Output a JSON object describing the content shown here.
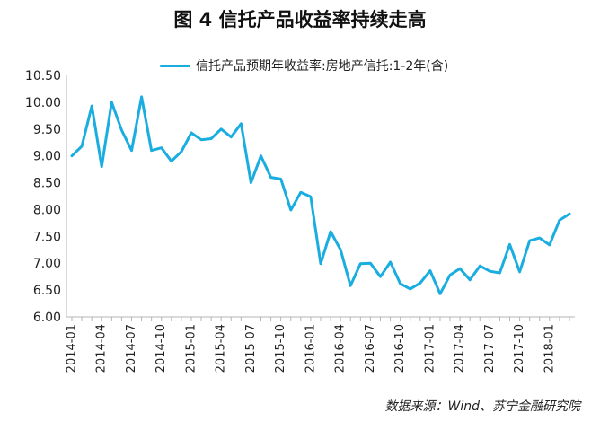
{
  "title": "图 4  信托产品收益率持续走高",
  "source": "数据来源：Wind、苏宁金融研究院",
  "chart_data": {
    "type": "line",
    "ylim": [
      6.0,
      10.5
    ],
    "yticks": [
      "6.00",
      "6.50",
      "7.00",
      "7.50",
      "8.00",
      "8.50",
      "9.00",
      "9.50",
      "10.00",
      "10.50"
    ],
    "xtick_labels": [
      "2014-01",
      "2014-04",
      "2014-07",
      "2014-10",
      "2015-01",
      "2015-04",
      "2015-07",
      "2015-10",
      "2016-01",
      "2016-04",
      "2016-07",
      "2016-10",
      "2017-01",
      "2017-04",
      "2017-07",
      "2017-10",
      "2018-01"
    ],
    "color": "#1AADE0",
    "series": [
      {
        "name": "信托产品预期年收益率:房地产信托:1-2年(含)",
        "values": [
          9.0,
          9.18,
          9.93,
          8.8,
          10.0,
          9.48,
          9.1,
          10.1,
          9.1,
          9.15,
          8.9,
          9.08,
          9.43,
          9.3,
          9.32,
          9.5,
          9.35,
          9.6,
          8.5,
          9.0,
          8.6,
          8.57,
          7.99,
          8.32,
          8.24,
          6.99,
          7.59,
          7.25,
          6.58,
          6.99,
          7.0,
          6.75,
          7.02,
          6.62,
          6.52,
          6.63,
          6.86,
          6.43,
          6.78,
          6.9,
          6.69,
          6.95,
          6.85,
          6.82,
          7.35,
          6.84,
          7.42,
          7.47,
          7.34,
          7.8,
          7.92
        ]
      }
    ]
  }
}
